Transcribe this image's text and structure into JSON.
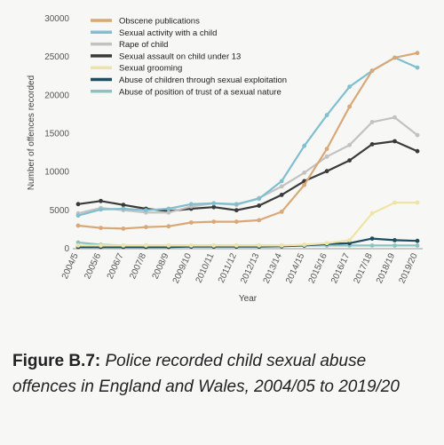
{
  "chart_data": {
    "type": "line",
    "xlabel": "Year",
    "ylabel": "Number of offences recorded",
    "ylim": [
      0,
      30000
    ],
    "yticks": [
      0,
      5000,
      10000,
      15000,
      20000,
      25000,
      30000
    ],
    "grid": false,
    "legend_position": "top-left",
    "categories": [
      "2004/5",
      "2005/6",
      "2006/7",
      "2007/8",
      "2008/9",
      "2009/10",
      "2010/11",
      "2011/12",
      "2012/13",
      "2013/14",
      "2014/15",
      "2015/16",
      "2016/17",
      "2017/18",
      "2018/19",
      "2019/20"
    ],
    "series": [
      {
        "name": "Obscene publications",
        "color": "#d9a877",
        "values": [
          2900,
          2600,
          2500,
          2700,
          2800,
          3300,
          3400,
          3400,
          3600,
          4700,
          8200,
          12900,
          18400,
          23100,
          24800,
          25400
        ]
      },
      {
        "name": "Sexual activity with a child",
        "color": "#7fbfcf",
        "values": [
          4200,
          5000,
          5100,
          4900,
          5100,
          5700,
          5800,
          5700,
          6400,
          8700,
          13300,
          17300,
          21000,
          23100,
          24800,
          23500
        ]
      },
      {
        "name": "Rape of child",
        "color": "#c2c2c2",
        "values": [
          4500,
          5200,
          4900,
          4600,
          4600,
          5400,
          5800,
          5600,
          6500,
          8000,
          9800,
          11900,
          13400,
          16400,
          17000,
          14700
        ]
      },
      {
        "name": "Sexual assault on child under 13",
        "color": "#3a3a3a",
        "values": [
          5700,
          6100,
          5600,
          5100,
          4800,
          5100,
          5300,
          4900,
          5500,
          6900,
          8700,
          10000,
          11400,
          13500,
          13900,
          12600
        ]
      },
      {
        "name": "Sexual grooming",
        "color": "#efe4a8",
        "values": [
          300,
          300,
          300,
          300,
          300,
          300,
          300,
          300,
          300,
          300,
          400,
          600,
          1000,
          4500,
          5900,
          5900
        ]
      },
      {
        "name": "Abuse of children through sexual exploitation",
        "color": "#1f4e60",
        "values": [
          100,
          100,
          100,
          100,
          100,
          150,
          150,
          150,
          150,
          200,
          300,
          500,
          600,
          1200,
          1000,
          900
        ]
      },
      {
        "name": "Abuse of position of trust of a sexual nature",
        "color": "#8ac4c0",
        "values": [
          700,
          400,
          300,
          300,
          300,
          300,
          300,
          300,
          300,
          300,
          300,
          300,
          300,
          300,
          300,
          300
        ]
      }
    ]
  },
  "caption": {
    "label": "Figure B.7:",
    "text": " Police recorded child sexual abuse offences in England and Wales, 2004/05 to 2019/20"
  }
}
